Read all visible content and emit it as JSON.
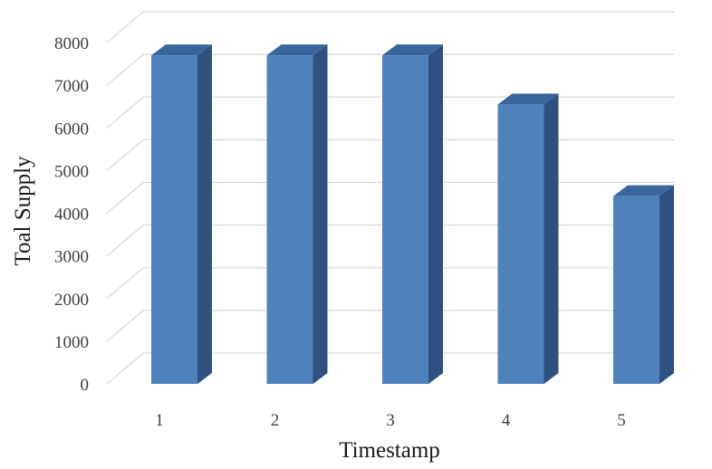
{
  "chart_data": {
    "type": "bar",
    "style": "3d-column",
    "categories": [
      "1",
      "2",
      "3",
      "4",
      "5"
    ],
    "values": [
      7700,
      7700,
      7700,
      6550,
      4400
    ],
    "title": "",
    "xlabel": "Timestamp",
    "ylabel": "Toal Supply",
    "ylim": [
      0,
      8000
    ],
    "yticks": [
      0,
      1000,
      2000,
      3000,
      4000,
      5000,
      6000,
      7000,
      8000
    ],
    "grid": true,
    "legend": "none",
    "colors": {
      "bar_front": "#4f81bd",
      "bar_side": "#2f5180",
      "bar_top": "#3a669e",
      "grid": "#d9d9d9"
    }
  }
}
